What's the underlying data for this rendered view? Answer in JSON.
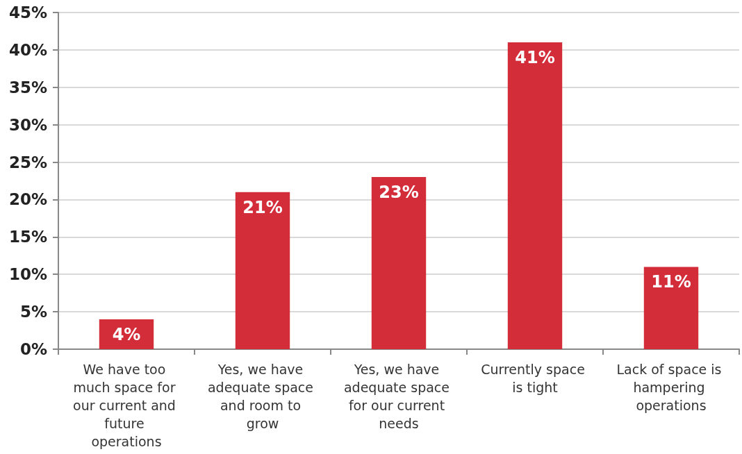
{
  "chart_data": {
    "type": "bar",
    "categories": [
      "We have too much space for our current and future operations",
      "Yes, we have adequate space and room to grow",
      "Yes, we have adequate space for our current needs",
      "Currently space is tight",
      "Lack of space is hampering operations"
    ],
    "values": [
      4,
      21,
      23,
      41,
      11
    ],
    "value_labels": [
      "4%",
      "21%",
      "23%",
      "41%",
      "11%"
    ],
    "color": "#d42d3a",
    "ylim": [
      0,
      45
    ],
    "yticks": [
      {
        "value": 0,
        "label": "0%"
      },
      {
        "value": 5,
        "label": "5%"
      },
      {
        "value": 10,
        "label": "10%"
      },
      {
        "value": 15,
        "label": "15%"
      },
      {
        "value": 20,
        "label": "20%"
      },
      {
        "value": 25,
        "label": "25%"
      },
      {
        "value": 30,
        "label": "30%"
      },
      {
        "value": 35,
        "label": "35%"
      },
      {
        "value": 40,
        "label": "40%"
      },
      {
        "value": 45,
        "label": "45%"
      }
    ],
    "grid": "y"
  }
}
